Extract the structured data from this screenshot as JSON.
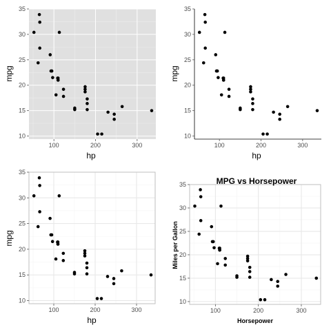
{
  "colors": {
    "grey_panel": "#e0e0e0",
    "grey_grid_major": "#ffffff",
    "grey_grid_minor": "#ececec",
    "light_grid_major": "#e6e6e6",
    "light_grid_minor": "#f4f4f4",
    "frame": "#bfbfbf",
    "axis_line": "#000000",
    "point": "#000000"
  },
  "chart_data": [
    {
      "type": "scatter",
      "theme": "grey panel with white gridlines, no border",
      "title": "",
      "xlabel": "hp",
      "ylabel": "mpg",
      "xlim": [
        40,
        345
      ],
      "ylim": [
        9.4,
        35.0
      ],
      "xticks": [
        100,
        200,
        300
      ],
      "yticks": [
        10,
        15,
        20,
        25,
        30,
        35
      ],
      "grid": true,
      "legend": "none",
      "x": [
        110,
        110,
        93,
        110,
        175,
        105,
        245,
        62,
        95,
        123,
        123,
        180,
        180,
        180,
        205,
        215,
        230,
        66,
        52,
        65,
        97,
        150,
        150,
        245,
        175,
        66,
        91,
        113,
        264,
        175,
        335,
        109
      ],
      "y": [
        21.0,
        21.0,
        22.8,
        21.4,
        18.7,
        18.1,
        14.3,
        24.4,
        22.8,
        19.2,
        17.8,
        16.4,
        17.3,
        15.2,
        10.4,
        10.4,
        14.7,
        32.4,
        30.4,
        33.9,
        21.5,
        15.5,
        15.2,
        13.3,
        19.2,
        27.3,
        26.0,
        30.4,
        15.8,
        19.7,
        15.0,
        21.4
      ]
    },
    {
      "type": "scatter",
      "theme": "classic: x and y axis lines only, no grid",
      "title": "",
      "xlabel": "hp",
      "ylabel": "mpg",
      "xlim": [
        40,
        345
      ],
      "ylim": [
        9.4,
        35.0
      ],
      "xticks": [
        100,
        200,
        300
      ],
      "yticks": [
        10,
        15,
        20,
        25,
        30,
        35
      ],
      "grid": false,
      "legend": "none",
      "x": [
        110,
        110,
        93,
        110,
        175,
        105,
        245,
        62,
        95,
        123,
        123,
        180,
        180,
        180,
        205,
        215,
        230,
        66,
        52,
        65,
        97,
        150,
        150,
        245,
        175,
        66,
        91,
        113,
        264,
        175,
        335,
        109
      ],
      "y": [
        21.0,
        21.0,
        22.8,
        21.4,
        18.7,
        18.1,
        14.3,
        24.4,
        22.8,
        19.2,
        17.8,
        16.4,
        17.3,
        15.2,
        10.4,
        10.4,
        14.7,
        32.4,
        30.4,
        33.9,
        21.5,
        15.5,
        15.2,
        13.3,
        19.2,
        27.3,
        26.0,
        30.4,
        15.8,
        19.7,
        15.0,
        21.4
      ]
    },
    {
      "type": "scatter",
      "theme": "white panel with light grey gridlines and border",
      "title": "",
      "xlabel": "hp",
      "ylabel": "mpg",
      "xlim": [
        40,
        345
      ],
      "ylim": [
        9.4,
        35.0
      ],
      "xticks": [
        100,
        200,
        300
      ],
      "yticks": [
        10,
        15,
        20,
        25,
        30,
        35
      ],
      "grid": true,
      "legend": "none",
      "x": [
        110,
        110,
        93,
        110,
        175,
        105,
        245,
        62,
        95,
        123,
        123,
        180,
        180,
        180,
        205,
        215,
        230,
        66,
        52,
        65,
        97,
        150,
        150,
        245,
        175,
        66,
        91,
        113,
        264,
        175,
        335,
        109
      ],
      "y": [
        21.0,
        21.0,
        22.8,
        21.4,
        18.7,
        18.1,
        14.3,
        24.4,
        22.8,
        19.2,
        17.8,
        16.4,
        17.3,
        15.2,
        10.4,
        10.4,
        14.7,
        32.4,
        30.4,
        33.9,
        21.5,
        15.5,
        15.2,
        13.3,
        19.2,
        27.3,
        26.0,
        30.4,
        15.8,
        19.7,
        15.0,
        21.4
      ]
    },
    {
      "type": "scatter",
      "theme": "white panel with light grey gridlines and border, bold titles",
      "title": "MPG vs Horsepower",
      "xlabel": "Horsepower",
      "ylabel": "Miles per Gallon",
      "xlim": [
        40,
        345
      ],
      "ylim": [
        9.4,
        35.0
      ],
      "xticks": [
        100,
        200,
        300
      ],
      "yticks": [
        10,
        15,
        20,
        25,
        30,
        35
      ],
      "grid": true,
      "legend": "none",
      "x": [
        110,
        110,
        93,
        110,
        175,
        105,
        245,
        62,
        95,
        123,
        123,
        180,
        180,
        180,
        205,
        215,
        230,
        66,
        52,
        65,
        97,
        150,
        150,
        245,
        175,
        66,
        91,
        113,
        264,
        175,
        335,
        109
      ],
      "y": [
        21.0,
        21.0,
        22.8,
        21.4,
        18.7,
        18.1,
        14.3,
        24.4,
        22.8,
        19.2,
        17.8,
        16.4,
        17.3,
        15.2,
        10.4,
        10.4,
        14.7,
        32.4,
        30.4,
        33.9,
        21.5,
        15.5,
        15.2,
        13.3,
        19.2,
        27.3,
        26.0,
        30.4,
        15.8,
        19.7,
        15.0,
        21.4
      ]
    }
  ]
}
